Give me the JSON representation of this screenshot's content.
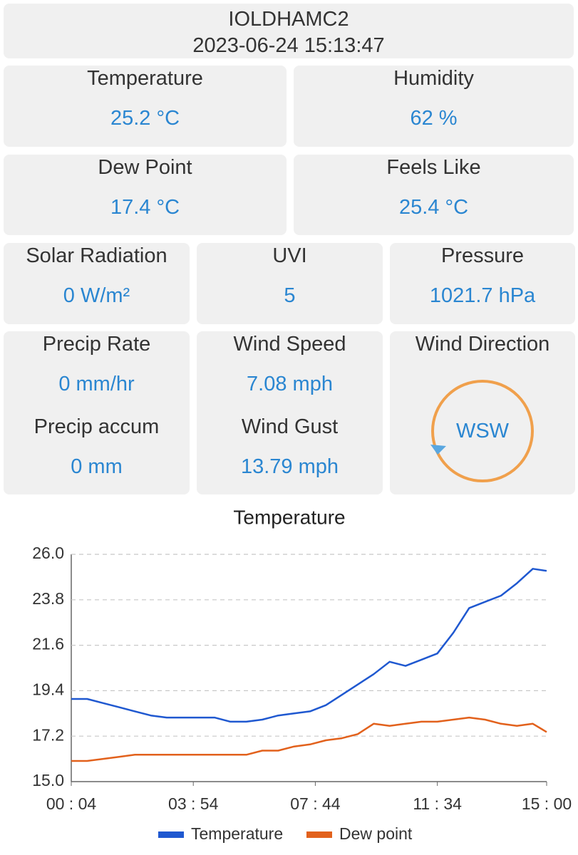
{
  "header": {
    "station": "IOLDHAMC2",
    "timestamp": "2023-06-24 15:13:47"
  },
  "metrics": [
    {
      "label": "Temperature",
      "value": "25.2 °C"
    },
    {
      "label": "Humidity",
      "value": "62 %"
    },
    {
      "label": "Dew Point",
      "value": "17.4 °C"
    },
    {
      "label": "Feels Like",
      "value": "25.4 °C"
    },
    {
      "label": "Solar Radiation",
      "value": "0 W/m²"
    },
    {
      "label": "UVI",
      "value": "5"
    },
    {
      "label": "Pressure",
      "value": "1021.7 hPa"
    },
    {
      "label": "Precip Rate",
      "value": "0 mm/hr"
    },
    {
      "label": "Precip accum",
      "value": "0 mm"
    },
    {
      "label": "Wind Speed",
      "value": "7.08 mph"
    },
    {
      "label": "Wind Gust",
      "value": "13.79 mph"
    },
    {
      "label": "Wind Direction",
      "value": "WSW"
    }
  ],
  "chart_data": {
    "type": "line",
    "title": "Temperature",
    "x": [
      4,
      34,
      64,
      94,
      124,
      154,
      184,
      214,
      244,
      274,
      304,
      334,
      364,
      394,
      424,
      454,
      484,
      514,
      544,
      574,
      604,
      634,
      664,
      694,
      724,
      754,
      784,
      814,
      844,
      874,
      900
    ],
    "series": [
      {
        "name": "Temperature",
        "color": "#1f58d0",
        "values": [
          19.0,
          19.0,
          18.8,
          18.6,
          18.4,
          18.2,
          18.1,
          18.1,
          18.1,
          18.1,
          17.9,
          17.9,
          18.0,
          18.2,
          18.3,
          18.4,
          18.7,
          19.2,
          19.7,
          20.2,
          20.8,
          20.6,
          20.9,
          21.2,
          22.2,
          23.4,
          23.7,
          24.0,
          24.6,
          25.3,
          25.2
        ]
      },
      {
        "name": "Dew point",
        "color": "#e2611c",
        "values": [
          16.0,
          16.0,
          16.1,
          16.2,
          16.3,
          16.3,
          16.3,
          16.3,
          16.3,
          16.3,
          16.3,
          16.3,
          16.5,
          16.5,
          16.7,
          16.8,
          17.0,
          17.1,
          17.3,
          17.8,
          17.7,
          17.8,
          17.9,
          17.9,
          18.0,
          18.1,
          18.0,
          17.8,
          17.7,
          17.8,
          17.4
        ]
      }
    ],
    "xlim": [
      4,
      900
    ],
    "xticks": [
      {
        "value": 4,
        "label": "00 : 04"
      },
      {
        "value": 234,
        "label": "03 : 54"
      },
      {
        "value": 464,
        "label": "07 : 44"
      },
      {
        "value": 694,
        "label": "11 : 34"
      },
      {
        "value": 900,
        "label": "15 : 00"
      }
    ],
    "ylim": [
      15.0,
      26.0
    ],
    "yticks": [
      {
        "value": 15,
        "label": "15.0"
      },
      17.2,
      19.4,
      21.6,
      23.8,
      {
        "value": 26,
        "label": "26.0"
      }
    ],
    "grid": true
  }
}
